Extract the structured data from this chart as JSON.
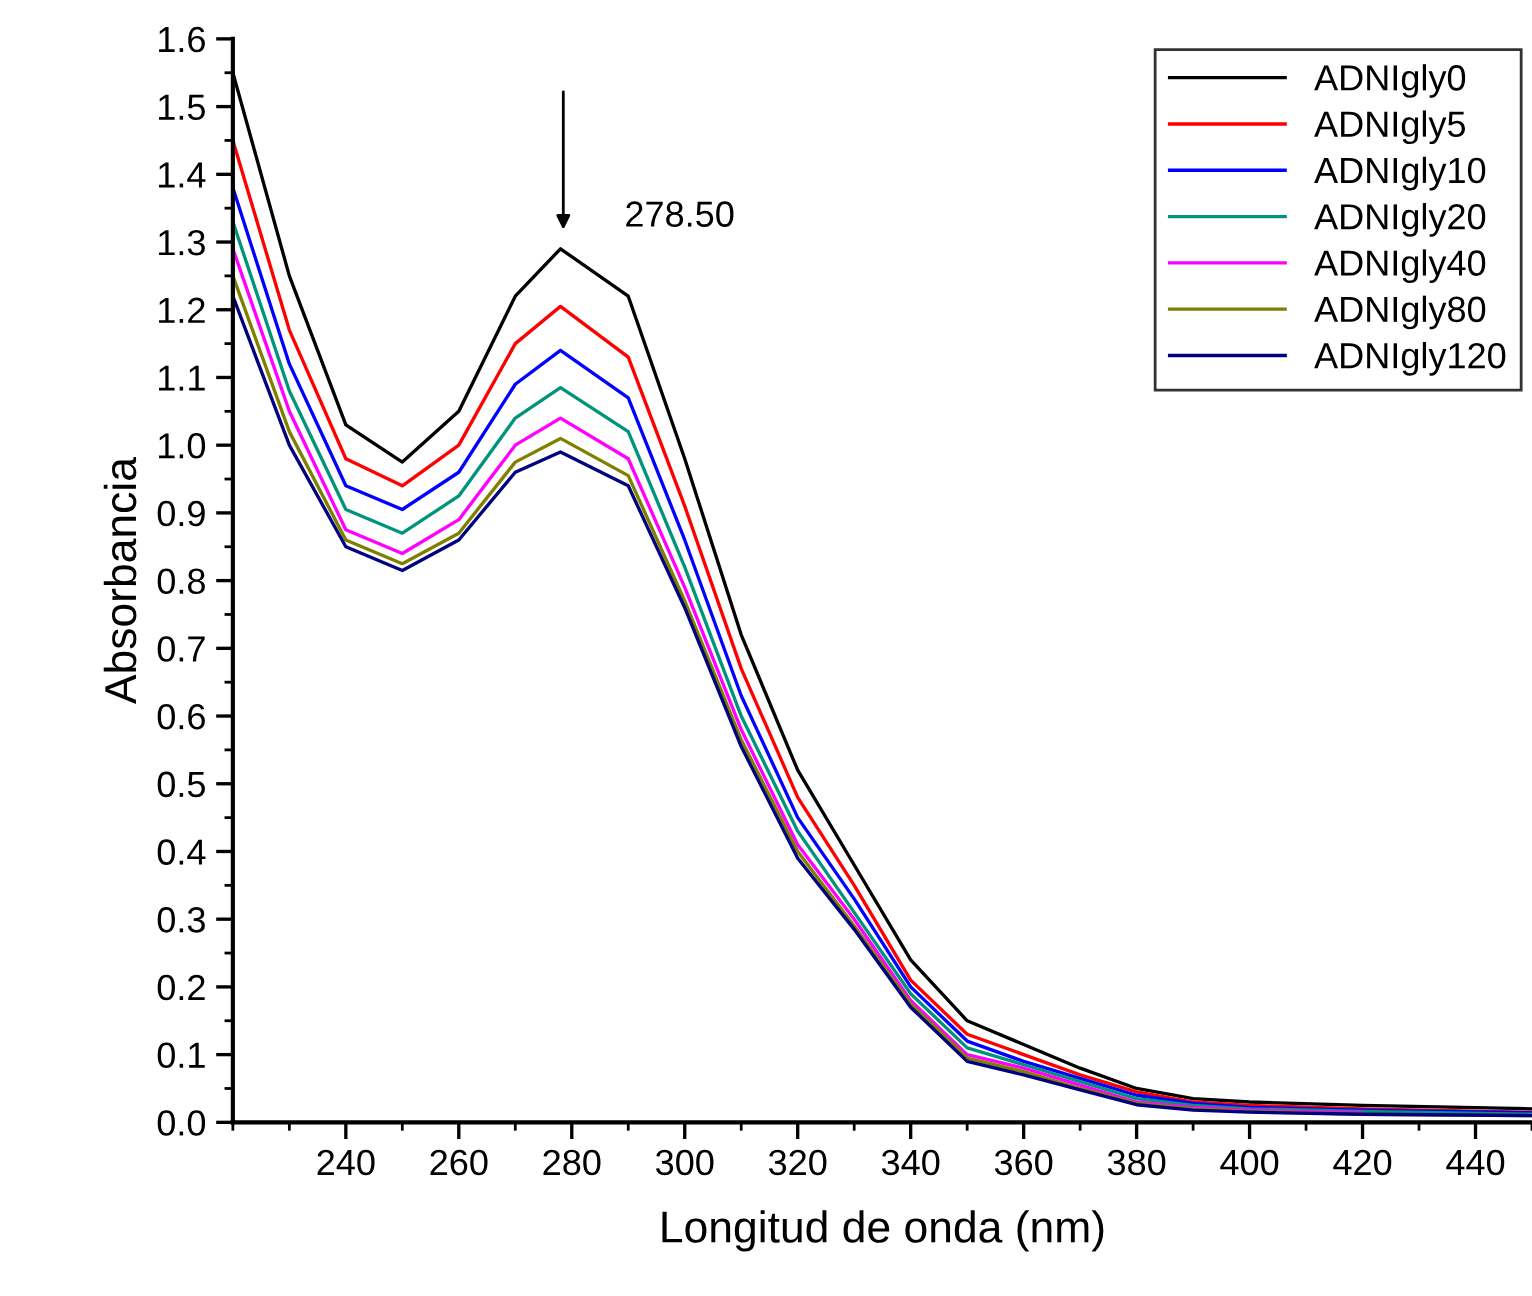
{
  "chart_data": {
    "type": "line",
    "xlabel": "Longitud de onda (nm)",
    "ylabel": "Absorbancia",
    "x": [
      220,
      230,
      240,
      250,
      260,
      270,
      278,
      290,
      300,
      310,
      320,
      330,
      340,
      350,
      360,
      370,
      380,
      390,
      400,
      420,
      450
    ],
    "series": [
      {
        "name": "ADNIgly0",
        "color": "#000000",
        "values": [
          1.55,
          1.25,
          1.03,
          0.975,
          1.05,
          1.22,
          1.29,
          1.22,
          0.98,
          0.72,
          0.52,
          0.38,
          0.24,
          0.15,
          0.115,
          0.08,
          0.05,
          0.035,
          0.03,
          0.025,
          0.02
        ]
      },
      {
        "name": "ADNIgly5",
        "color": "#ff0000",
        "values": [
          1.45,
          1.17,
          0.98,
          0.94,
          1.0,
          1.15,
          1.205,
          1.13,
          0.91,
          0.67,
          0.48,
          0.35,
          0.21,
          0.13,
          0.1,
          0.07,
          0.045,
          0.03,
          0.025,
          0.02,
          0.015
        ]
      },
      {
        "name": "ADNIgly10",
        "color": "#0000ff",
        "values": [
          1.38,
          1.12,
          0.94,
          0.905,
          0.96,
          1.09,
          1.14,
          1.07,
          0.86,
          0.63,
          0.45,
          0.33,
          0.2,
          0.12,
          0.09,
          0.065,
          0.04,
          0.028,
          0.022,
          0.018,
          0.014
        ]
      },
      {
        "name": "ADNIgly20",
        "color": "#00947a",
        "values": [
          1.33,
          1.08,
          0.905,
          0.87,
          0.925,
          1.04,
          1.085,
          1.02,
          0.82,
          0.6,
          0.43,
          0.31,
          0.19,
          0.11,
          0.085,
          0.06,
          0.035,
          0.025,
          0.02,
          0.016,
          0.012
        ]
      },
      {
        "name": "ADNIgly40",
        "color": "#ff00ff",
        "values": [
          1.29,
          1.05,
          0.875,
          0.84,
          0.89,
          1.0,
          1.04,
          0.98,
          0.79,
          0.58,
          0.41,
          0.3,
          0.18,
          0.1,
          0.08,
          0.055,
          0.03,
          0.022,
          0.018,
          0.014,
          null
        ]
      },
      {
        "name": "ADNIgly80",
        "color": "#808000",
        "values": [
          1.25,
          1.02,
          0.86,
          0.825,
          0.87,
          0.975,
          1.01,
          0.955,
          0.77,
          0.565,
          0.4,
          0.29,
          0.175,
          0.095,
          0.075,
          0.05,
          0.028,
          0.02,
          0.016,
          0.012,
          0.01
        ]
      },
      {
        "name": "ADNIgly120",
        "color": "#000080",
        "values": [
          1.22,
          1.0,
          0.85,
          0.815,
          0.86,
          0.96,
          0.99,
          0.94,
          0.76,
          0.555,
          0.39,
          0.285,
          0.17,
          0.09,
          0.07,
          0.048,
          0.026,
          0.018,
          0.015,
          0.012,
          0.01
        ]
      }
    ],
    "annotations": [
      {
        "text": "278.50",
        "x": 278.5,
        "y": 1.29
      }
    ],
    "xlim": [
      220,
      450
    ],
    "xticks": [
      240,
      260,
      280,
      300,
      320,
      340,
      360,
      380,
      400,
      420,
      440
    ],
    "ylim": [
      0,
      1.6
    ],
    "yticks": [
      {
        "value": 0,
        "label": "0.0"
      },
      0.1,
      0.2,
      0.3,
      0.4,
      0.5,
      0.6,
      0.7,
      0.8,
      0.9,
      {
        "value": 1.0,
        "label": "1.0"
      },
      1.1,
      1.2,
      1.3,
      1.4,
      1.5,
      1.6
    ],
    "grid": false,
    "legend": "top right",
    "marker": "none",
    "line_style": "solid"
  }
}
